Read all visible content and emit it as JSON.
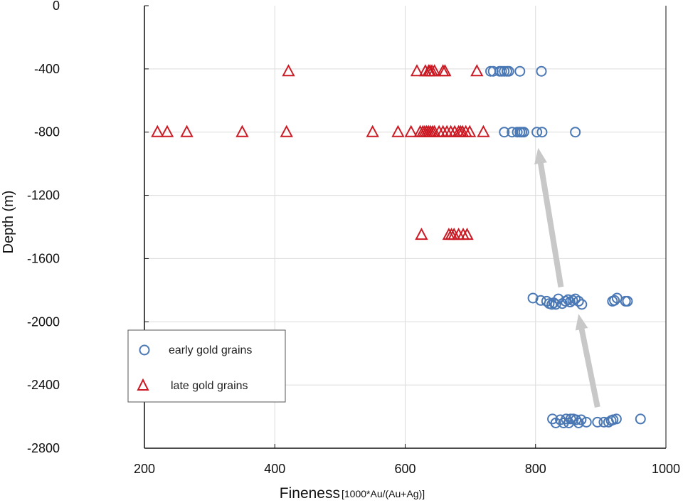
{
  "chart_data": {
    "type": "scatter",
    "title": "",
    "xlabel": "Fineness",
    "xlabel_suffix": "[1000*Au/(Au+Ag)]",
    "ylabel": "Depth (m)",
    "xlim": [
      200,
      1000
    ],
    "ylim": [
      -2800,
      0
    ],
    "xticks": [
      "200",
      "400",
      "600",
      "800",
      "1000"
    ],
    "yticks": [
      "0",
      "-400",
      "-800",
      "-1200",
      "-1600",
      "-2000",
      "-2400",
      "-2800"
    ],
    "grid": true,
    "legend_position": "lower-left",
    "colors": {
      "early": "#4a78b5",
      "late": "#cc1a24",
      "arrow": "#c8c8c8",
      "grid": "#dcdcdc"
    },
    "series": [
      {
        "name": "early gold grains",
        "marker": "circle",
        "points": [
          {
            "x": 731,
            "y": -415
          },
          {
            "x": 735,
            "y": -415
          },
          {
            "x": 745,
            "y": -415
          },
          {
            "x": 748,
            "y": -415
          },
          {
            "x": 752,
            "y": -415
          },
          {
            "x": 756,
            "y": -415
          },
          {
            "x": 759,
            "y": -415
          },
          {
            "x": 776,
            "y": -415
          },
          {
            "x": 809,
            "y": -415
          },
          {
            "x": 752,
            "y": -800
          },
          {
            "x": 764,
            "y": -800
          },
          {
            "x": 772,
            "y": -800
          },
          {
            "x": 776,
            "y": -800
          },
          {
            "x": 779,
            "y": -800
          },
          {
            "x": 782,
            "y": -800
          },
          {
            "x": 802,
            "y": -800
          },
          {
            "x": 810,
            "y": -800
          },
          {
            "x": 861,
            "y": -800
          },
          {
            "x": 796,
            "y": -1850
          },
          {
            "x": 808,
            "y": -1865
          },
          {
            "x": 817,
            "y": -1870
          },
          {
            "x": 821,
            "y": -1885
          },
          {
            "x": 825,
            "y": -1890
          },
          {
            "x": 828,
            "y": -1880
          },
          {
            "x": 831,
            "y": -1890
          },
          {
            "x": 835,
            "y": -1855
          },
          {
            "x": 841,
            "y": -1885
          },
          {
            "x": 846,
            "y": -1870
          },
          {
            "x": 850,
            "y": -1860
          },
          {
            "x": 853,
            "y": -1875
          },
          {
            "x": 857,
            "y": -1865
          },
          {
            "x": 861,
            "y": -1855
          },
          {
            "x": 866,
            "y": -1870
          },
          {
            "x": 871,
            "y": -1890
          },
          {
            "x": 918,
            "y": -1870
          },
          {
            "x": 921,
            "y": -1865
          },
          {
            "x": 925,
            "y": -1850
          },
          {
            "x": 938,
            "y": -1870
          },
          {
            "x": 941,
            "y": -1870
          },
          {
            "x": 826,
            "y": -2615
          },
          {
            "x": 831,
            "y": -2640
          },
          {
            "x": 838,
            "y": -2620
          },
          {
            "x": 843,
            "y": -2640
          },
          {
            "x": 847,
            "y": -2615
          },
          {
            "x": 851,
            "y": -2640
          },
          {
            "x": 854,
            "y": -2615
          },
          {
            "x": 858,
            "y": -2615
          },
          {
            "x": 862,
            "y": -2620
          },
          {
            "x": 866,
            "y": -2640
          },
          {
            "x": 870,
            "y": -2620
          },
          {
            "x": 878,
            "y": -2635
          },
          {
            "x": 895,
            "y": -2635
          },
          {
            "x": 905,
            "y": -2635
          },
          {
            "x": 912,
            "y": -2635
          },
          {
            "x": 916,
            "y": -2625
          },
          {
            "x": 919,
            "y": -2620
          },
          {
            "x": 924,
            "y": -2615
          },
          {
            "x": 961,
            "y": -2615
          }
        ]
      },
      {
        "name": "late gold grains",
        "marker": "triangle",
        "points": [
          {
            "x": 421,
            "y": -415
          },
          {
            "x": 618,
            "y": -415
          },
          {
            "x": 631,
            "y": -415
          },
          {
            "x": 636,
            "y": -415
          },
          {
            "x": 638,
            "y": -415
          },
          {
            "x": 641,
            "y": -415
          },
          {
            "x": 645,
            "y": -415
          },
          {
            "x": 658,
            "y": -415
          },
          {
            "x": 661,
            "y": -415
          },
          {
            "x": 710,
            "y": -415
          },
          {
            "x": 220,
            "y": -800
          },
          {
            "x": 235,
            "y": -800
          },
          {
            "x": 265,
            "y": -800
          },
          {
            "x": 350,
            "y": -800
          },
          {
            "x": 418,
            "y": -800
          },
          {
            "x": 550,
            "y": -800
          },
          {
            "x": 589,
            "y": -800
          },
          {
            "x": 609,
            "y": -800
          },
          {
            "x": 623,
            "y": -800
          },
          {
            "x": 627,
            "y": -800
          },
          {
            "x": 630,
            "y": -800
          },
          {
            "x": 633,
            "y": -800
          },
          {
            "x": 636,
            "y": -800
          },
          {
            "x": 639,
            "y": -800
          },
          {
            "x": 642,
            "y": -800
          },
          {
            "x": 645,
            "y": -800
          },
          {
            "x": 652,
            "y": -800
          },
          {
            "x": 658,
            "y": -800
          },
          {
            "x": 664,
            "y": -800
          },
          {
            "x": 670,
            "y": -800
          },
          {
            "x": 676,
            "y": -800
          },
          {
            "x": 682,
            "y": -800
          },
          {
            "x": 685,
            "y": -800
          },
          {
            "x": 688,
            "y": -800
          },
          {
            "x": 693,
            "y": -800
          },
          {
            "x": 699,
            "y": -800
          },
          {
            "x": 720,
            "y": -800
          },
          {
            "x": 625,
            "y": -1450
          },
          {
            "x": 667,
            "y": -1450
          },
          {
            "x": 671,
            "y": -1450
          },
          {
            "x": 675,
            "y": -1450
          },
          {
            "x": 682,
            "y": -1450
          },
          {
            "x": 689,
            "y": -1450
          },
          {
            "x": 695,
            "y": -1450
          }
        ]
      }
    ],
    "annotations": [
      {
        "type": "arrow",
        "from": {
          "x": 895,
          "y": -2540
        },
        "to": {
          "x": 866,
          "y": -1950
        }
      },
      {
        "type": "arrow",
        "from": {
          "x": 839,
          "y": -1780
        },
        "to": {
          "x": 804,
          "y": -900
        }
      }
    ]
  }
}
